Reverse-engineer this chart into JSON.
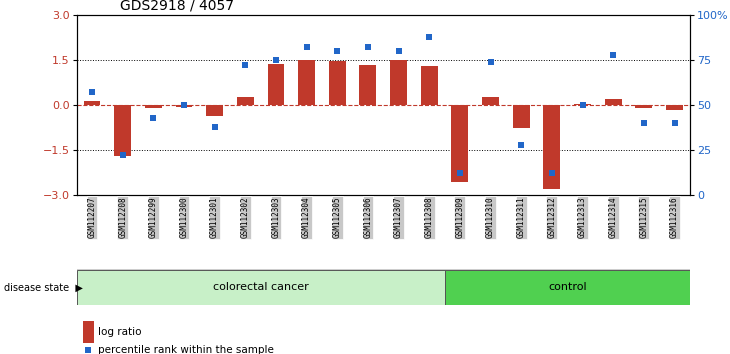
{
  "title": "GDS2918 / 4057",
  "samples": [
    "GSM112207",
    "GSM112208",
    "GSM112299",
    "GSM112300",
    "GSM112301",
    "GSM112302",
    "GSM112303",
    "GSM112304",
    "GSM112305",
    "GSM112306",
    "GSM112307",
    "GSM112308",
    "GSM112309",
    "GSM112310",
    "GSM112311",
    "GSM112312",
    "GSM112313",
    "GSM112314",
    "GSM112315",
    "GSM112316"
  ],
  "log_ratio": [
    0.15,
    -1.7,
    -0.1,
    -0.05,
    -0.35,
    0.28,
    1.38,
    1.5,
    1.48,
    1.32,
    1.5,
    1.3,
    -2.55,
    0.27,
    -0.75,
    -2.8,
    0.03,
    0.2,
    -0.1,
    -0.15
  ],
  "percentile": [
    57,
    22,
    43,
    50,
    38,
    72,
    75,
    82,
    80,
    82,
    80,
    88,
    12,
    74,
    28,
    12,
    50,
    78,
    40,
    40
  ],
  "bar_color": "#c0392b",
  "dot_color": "#2166c8",
  "ylim": [
    -3,
    3
  ],
  "yticks_left": [
    -3,
    -1.5,
    0,
    1.5,
    3
  ],
  "yticks_right": [
    0,
    25,
    50,
    75,
    100
  ],
  "dotted_lines": [
    -1.5,
    1.5
  ],
  "legend_bar_label": "log ratio",
  "legend_dot_label": "percentile rank within the sample",
  "disease_state_label": "disease state",
  "colorectal_label": "colorectal cancer",
  "control_label": "control",
  "colorectal_color": "#c8f0c8",
  "control_color": "#50d050",
  "tick_bg_color": "#c8c8c8",
  "n_colorectal": 12,
  "n_total": 20
}
